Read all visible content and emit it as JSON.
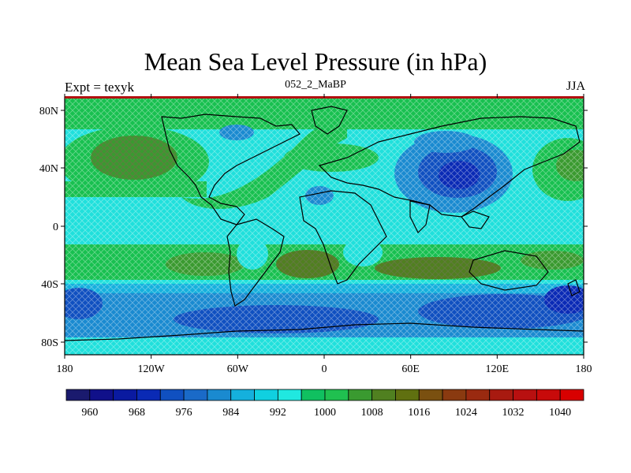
{
  "title": "Mean Sea Level Pressure (in hPa)",
  "subtitle_left": "Expt = texyk",
  "subtitle_center": "052_2_MaBP",
  "subtitle_right": "JJA",
  "lat_ticks": [
    "80N",
    "40N",
    "0",
    "40S",
    "80S"
  ],
  "lon_ticks": [
    "180",
    "120W",
    "60W",
    "0",
    "60E",
    "120E",
    "180"
  ],
  "colorbar": {
    "labels": [
      "960",
      "968",
      "976",
      "984",
      "992",
      "1000",
      "1008",
      "1016",
      "1024",
      "1032",
      "1040"
    ],
    "colors": [
      "#1a1a6e",
      "#10108a",
      "#0a1aa0",
      "#0a2ab5",
      "#1050c0",
      "#1a6ac8",
      "#1a8ad0",
      "#15b0dd",
      "#10d0e0",
      "#20e8e0",
      "#10c060",
      "#20c050",
      "#3a9a30",
      "#508020",
      "#607010",
      "#7a5010",
      "#8a3a10",
      "#9a2a10",
      "#a81a10",
      "#b81010",
      "#c80a0a",
      "#d80000"
    ]
  }
}
